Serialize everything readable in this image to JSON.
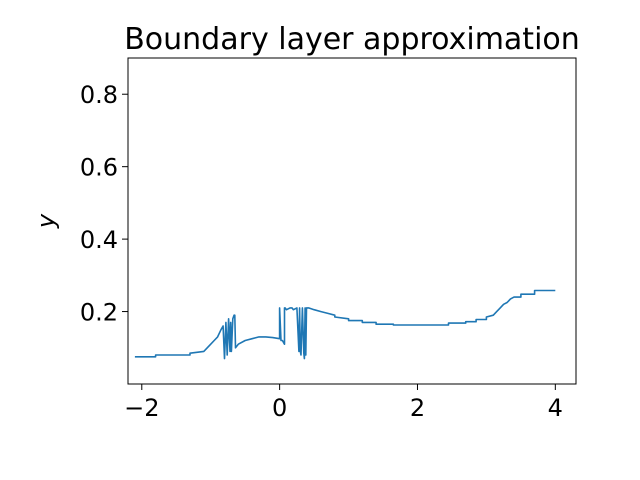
{
  "chart_data": {
    "type": "line",
    "title": "Boundary layer approximation",
    "xlabel": "",
    "ylabel": "y",
    "xlim": [
      -2.2,
      4.3
    ],
    "ylim": [
      0.0,
      0.9
    ],
    "xticks": [
      "−2",
      "0",
      "2",
      "4"
    ],
    "xtick_values": [
      -2,
      0,
      2,
      4
    ],
    "yticks": [
      "0.2",
      "0.4",
      "0.6",
      "0.8"
    ],
    "ytick_values": [
      0.2,
      0.4,
      0.6,
      0.8
    ],
    "grid": false,
    "series": [
      {
        "color": "#1f77b4",
        "x": [
          -2.1,
          -1.8,
          -1.8,
          -1.3,
          -1.3,
          -1.1,
          -1.0,
          -0.95,
          -0.9,
          -0.85,
          -0.82,
          -0.8,
          -0.78,
          -0.76,
          -0.74,
          -0.72,
          -0.71,
          -0.7,
          -0.68,
          -0.66,
          -0.65,
          -0.64,
          -0.6,
          -0.5,
          -0.4,
          -0.3,
          -0.2,
          -0.1,
          0.0,
          0.0,
          0.02,
          0.04,
          0.07,
          0.07,
          0.08,
          0.1,
          0.15,
          0.18,
          0.2,
          0.25,
          0.28,
          0.29,
          0.3,
          0.31,
          0.33,
          0.35,
          0.36,
          0.37,
          0.38,
          0.39,
          0.4,
          0.41,
          0.42,
          0.5,
          0.6,
          0.7,
          0.8,
          0.8,
          1.0,
          1.0,
          1.2,
          1.2,
          1.4,
          1.4,
          1.65,
          1.65,
          2.0,
          2.4,
          2.45,
          2.45,
          2.7,
          2.7,
          2.85,
          2.85,
          3.0,
          3.0,
          3.1,
          3.15,
          3.2,
          3.25,
          3.3,
          3.35,
          3.4,
          3.5,
          3.5,
          3.7,
          3.7,
          4.0
        ],
        "y": [
          0.075,
          0.075,
          0.08,
          0.08,
          0.085,
          0.09,
          0.11,
          0.12,
          0.13,
          0.15,
          0.16,
          0.07,
          0.17,
          0.08,
          0.18,
          0.09,
          0.17,
          0.09,
          0.18,
          0.19,
          0.19,
          0.1,
          0.11,
          0.12,
          0.125,
          0.13,
          0.13,
          0.128,
          0.125,
          0.21,
          0.12,
          0.12,
          0.11,
          0.21,
          0.21,
          0.205,
          0.21,
          0.21,
          0.205,
          0.21,
          0.09,
          0.21,
          0.09,
          0.08,
          0.21,
          0.085,
          0.07,
          0.21,
          0.08,
          0.21,
          0.21,
          0.21,
          0.21,
          0.205,
          0.2,
          0.195,
          0.19,
          0.185,
          0.18,
          0.175,
          0.175,
          0.17,
          0.17,
          0.165,
          0.165,
          0.163,
          0.163,
          0.163,
          0.163,
          0.168,
          0.168,
          0.172,
          0.172,
          0.178,
          0.178,
          0.185,
          0.19,
          0.2,
          0.21,
          0.22,
          0.225,
          0.235,
          0.24,
          0.24,
          0.248,
          0.248,
          0.258,
          0.258
        ]
      }
    ]
  }
}
